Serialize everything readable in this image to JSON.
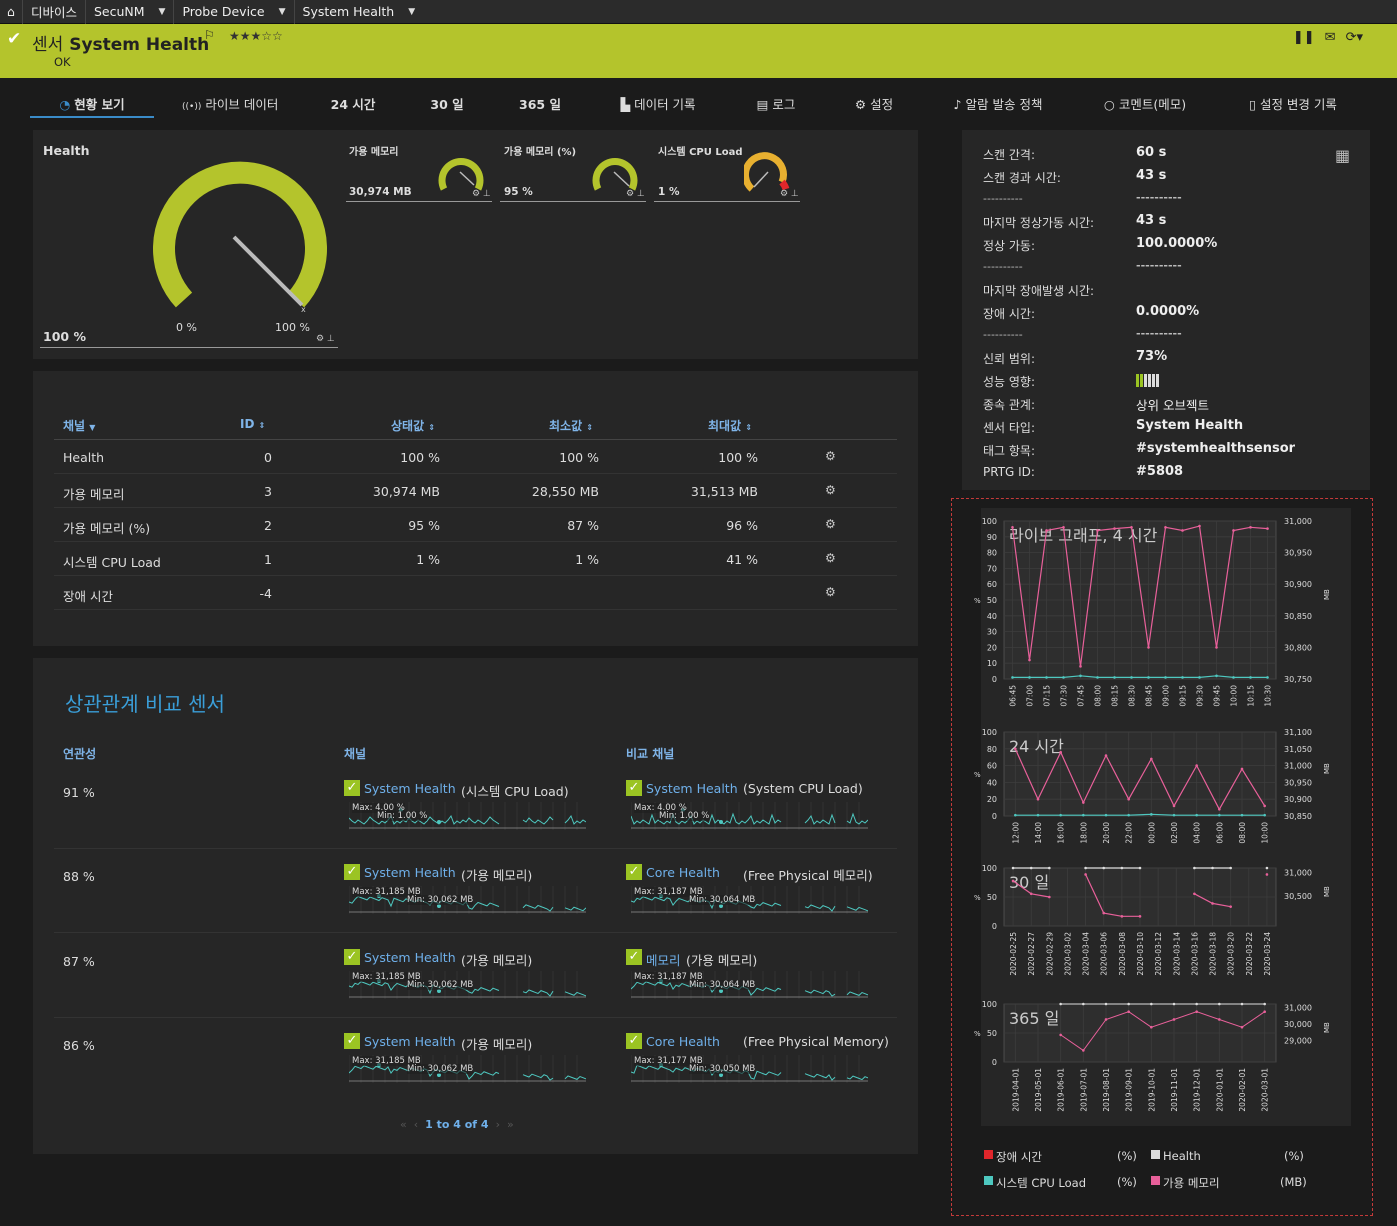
{
  "breadcrumb": [
    "디바이스",
    "SecuNM",
    "Probe Device",
    "System Health"
  ],
  "header": {
    "title_prefix": "센서",
    "title": "System Health",
    "status": "OK",
    "stars": "★★★☆☆",
    "accent": "#b4c42c"
  },
  "tabs": [
    {
      "label": "현황 보기",
      "icon": "gauge-icon"
    },
    {
      "label": "라이브 데이터",
      "icon": "live-icon"
    },
    {
      "label": "24 시간"
    },
    {
      "label": "30 일"
    },
    {
      "label": "365 일"
    },
    {
      "label": "데이터 기록",
      "icon": "chart-icon"
    },
    {
      "label": "로그",
      "icon": "list-icon"
    },
    {
      "label": "설정",
      "icon": "gear-icon"
    },
    {
      "label": "알람 발송 정책",
      "icon": "bell-icon"
    },
    {
      "label": "코멘트(메모)",
      "icon": "comment-icon"
    },
    {
      "label": "설정 변경 기록",
      "icon": "history-icon"
    }
  ],
  "gauges": {
    "main": {
      "title": "Health",
      "value": "100 %",
      "min": "0 %",
      "max": "100 %",
      "level": 1.0
    },
    "small": [
      {
        "title": "가용 메모리",
        "value": "30,974 MB",
        "level": 0.92,
        "color": "#b4c42c"
      },
      {
        "title": "가용 메모리 (%)",
        "value": "95 %",
        "level": 0.95,
        "color": "#b4c42c"
      },
      {
        "title": "시스템 CPU Load",
        "value": "1 %",
        "level": 0.01,
        "color": "#e8b030"
      }
    ]
  },
  "channels": {
    "headers": {
      "name": "채널",
      "id": "ID",
      "last": "상태값",
      "min": "최소값",
      "max": "최대값"
    },
    "rows": [
      {
        "name": "Health",
        "id": "0",
        "last": "100 %",
        "min": "100 %",
        "max": "100 %"
      },
      {
        "name": "가용 메모리",
        "id": "3",
        "last": "30,974 MB",
        "min": "28,550 MB",
        "max": "31,513 MB"
      },
      {
        "name": "가용 메모리 (%)",
        "id": "2",
        "last": "95 %",
        "min": "87 %",
        "max": "96 %"
      },
      {
        "name": "시스템 CPU Load",
        "id": "1",
        "last": "1 %",
        "min": "1 %",
        "max": "41 %"
      },
      {
        "name": "장애 시간",
        "id": "-4",
        "last": "",
        "min": "",
        "max": ""
      }
    ]
  },
  "info": [
    {
      "label": "스캔 간격:",
      "value": "60 s"
    },
    {
      "label": "스캔 경과 시간:",
      "value": "43 s"
    },
    {
      "label": "----------",
      "value": "----------"
    },
    {
      "label": "마지막 정상가동 시간:",
      "value": "43 s"
    },
    {
      "label": "정상 가동:",
      "value": "100.0000%"
    },
    {
      "label": "----------",
      "value": "----------"
    },
    {
      "label": "마지막 장애발생 시간:",
      "value": ""
    },
    {
      "label": "장애 시간:",
      "value": "0.0000%"
    },
    {
      "label": "----------",
      "value": "----------"
    },
    {
      "label": "신뢰 범위:",
      "value": "73%"
    },
    {
      "label": "성능 영향:",
      "value": ""
    },
    {
      "label": "종속 관계:",
      "value": "상위 오브젝트"
    },
    {
      "label": "센서 타입:",
      "value": "System Health"
    },
    {
      "label": "태그 항목:",
      "value": "#systemhealthsensor"
    },
    {
      "label": "PRTG ID:",
      "value": "#5808"
    }
  ],
  "correlation": {
    "title": "상관관계 비교 센서",
    "headers": {
      "corr": "연관성",
      "channel": "채널",
      "compare": "비교 채널"
    },
    "rows": [
      {
        "pct": "91 %",
        "ch_link": "System Health",
        "ch_par": "(시스템 CPU Load)",
        "ch_max": "Max: 4.00 %",
        "ch_min": "Min: 1.00 %",
        "cmp_link": "System Health",
        "cmp_par": "(System CPU Load)",
        "cmp_max": "Max: 4.00 %",
        "cmp_min": "Min: 1.00 %"
      },
      {
        "pct": "88 %",
        "ch_link": "System Health",
        "ch_par": "(가용 메모리)",
        "ch_max": "Max: 31,185 MB",
        "ch_min": "Min: 30,062 MB",
        "cmp_link": "Core Health",
        "cmp_par": "(Free Physical 메모리)",
        "cmp_max": "Max: 31,187 MB",
        "cmp_min": "Min: 30,064 MB"
      },
      {
        "pct": "87 %",
        "ch_link": "System Health",
        "ch_par": "(가용 메모리)",
        "ch_max": "Max: 31,185 MB",
        "ch_min": "Min: 30,062 MB",
        "cmp_link": "메모리",
        "cmp_par": "(가용 메모리)",
        "cmp_max": "Max: 31,187 MB",
        "cmp_min": "Min: 30,064 MB"
      },
      {
        "pct": "86 %",
        "ch_link": "System Health",
        "ch_par": "(가용 메모리)",
        "ch_max": "Max: 31,185 MB",
        "ch_min": "Min: 30,062 MB",
        "cmp_link": "Core Health",
        "cmp_par": "(Free Physical Memory)",
        "cmp_max": "Max: 31,177 MB",
        "cmp_min": "Min: 30,050 MB"
      }
    ],
    "pager": "1 to 4 of 4"
  },
  "chart_data": [
    {
      "type": "line",
      "title": "라이브 그래프, 4 시간",
      "x": [
        "06:45",
        "07:00",
        "07:15",
        "07:30",
        "07:45",
        "08:00",
        "08:15",
        "08:30",
        "08:45",
        "09:00",
        "09:15",
        "09:30",
        "09:45",
        "10:00",
        "10:15",
        "10:30"
      ],
      "ylabel": "%",
      "ylim": [
        0,
        100
      ],
      "yticks": [
        "100",
        "90",
        "80",
        "70",
        "60",
        "50",
        "40",
        "30",
        "20",
        "10",
        "0"
      ],
      "y2label": "MB",
      "y2lim": [
        30750,
        31000
      ],
      "y2ticks": [
        "31,000",
        "30,950",
        "30,900",
        "30,850",
        "30,800",
        "30,750"
      ],
      "series": [
        {
          "name": "가용 메모리",
          "unit": "MB",
          "axis": "right",
          "color": "#e8609a",
          "values": [
            30990,
            30780,
            30985,
            30990,
            30770,
            30985,
            30988,
            30990,
            30800,
            30990,
            30985,
            30992,
            30800,
            30985,
            30990,
            30988
          ]
        },
        {
          "name": "시스템 CPU Load",
          "unit": "%",
          "axis": "left",
          "color": "#4ec8c0",
          "values": [
            1,
            1,
            1,
            1,
            2,
            1,
            1,
            1,
            1,
            1,
            1,
            1,
            2,
            1,
            1,
            1
          ]
        }
      ]
    },
    {
      "type": "line",
      "title": "24 시간",
      "x": [
        "12:00",
        "14:00",
        "16:00",
        "18:00",
        "20:00",
        "22:00",
        "00:00",
        "02:00",
        "04:00",
        "06:00",
        "08:00",
        "10:00"
      ],
      "ylabel": "%",
      "ylim": [
        0,
        100
      ],
      "yticks": [
        "100",
        "80",
        "60",
        "40",
        "20",
        "0"
      ],
      "y2label": "MB",
      "y2lim": [
        30850,
        31100
      ],
      "y2ticks": [
        "31,100",
        "31,050",
        "31,000",
        "30,950",
        "30,900",
        "30,850"
      ],
      "series": [
        {
          "name": "가용 메모리",
          "unit": "MB",
          "axis": "right",
          "color": "#e8609a",
          "values": [
            31050,
            30900,
            31040,
            30890,
            31030,
            30900,
            31020,
            30880,
            31000,
            30870,
            30990,
            30880
          ]
        },
        {
          "name": "시스템 CPU Load",
          "unit": "%",
          "axis": "left",
          "color": "#4ec8c0",
          "values": [
            1,
            1,
            1,
            1,
            1,
            1,
            2,
            1,
            1,
            1,
            1,
            1
          ]
        }
      ]
    },
    {
      "type": "line",
      "title": "30 일",
      "x": [
        "2020-02-25",
        "2020-02-27",
        "2020-02-29",
        "2020-03-02",
        "2020-03-04",
        "2020-03-06",
        "2020-03-08",
        "2020-03-10",
        "2020-03-12",
        "2020-03-14",
        "2020-03-16",
        "2020-03-18",
        "2020-03-20",
        "2020-03-22",
        "2020-03-24"
      ],
      "ylabel": "%",
      "ylim": [
        0,
        100
      ],
      "yticks": [
        "100",
        "50",
        "0"
      ],
      "y2label": "MB",
      "y2ticks": [
        "31,000",
        "30,500"
      ],
      "series": [
        {
          "name": "가용 메모리",
          "unit": "MB",
          "axis": "right",
          "color": "#e8609a",
          "values": [
            30900,
            30700,
            30650,
            null,
            31000,
            30400,
            30350,
            30350,
            null,
            null,
            30700,
            30550,
            30500,
            null,
            31000
          ]
        },
        {
          "name": "Health",
          "unit": "%",
          "axis": "left",
          "color": "#dddddd",
          "values": [
            100,
            100,
            100,
            null,
            100,
            100,
            100,
            100,
            null,
            null,
            100,
            100,
            100,
            null,
            100
          ]
        }
      ]
    },
    {
      "type": "line",
      "title": "365 일",
      "x": [
        "2019-04-01",
        "2019-05-01",
        "2019-06-01",
        "2019-07-01",
        "2019-08-01",
        "2019-09-01",
        "2019-10-01",
        "2019-11-01",
        "2019-12-01",
        "2020-01-01",
        "2020-02-01",
        "2020-03-01"
      ],
      "ylabel": "%",
      "ylim": [
        0,
        100
      ],
      "yticks": [
        "100",
        "50",
        "0"
      ],
      "y2label": "MB",
      "y2ticks": [
        "31,000",
        "30,000",
        "29,000"
      ],
      "series": [
        {
          "name": "가용 메모리",
          "unit": "MB",
          "axis": "right",
          "color": "#e8609a",
          "values": [
            null,
            null,
            30600,
            30400,
            30800,
            30900,
            30700,
            30800,
            30900,
            30800,
            30700,
            30900
          ]
        },
        {
          "name": "Health",
          "unit": "%",
          "axis": "left",
          "color": "#dddddd",
          "values": [
            null,
            null,
            100,
            100,
            100,
            100,
            100,
            100,
            100,
            100,
            100,
            100
          ]
        }
      ]
    }
  ],
  "legend": [
    {
      "name": "장애 시간",
      "unit": "(%)",
      "color": "#e0262b"
    },
    {
      "name": "Health",
      "unit": "(%)",
      "color": "#dddddd"
    },
    {
      "name": "시스템 CPU Load",
      "unit": "(%)",
      "color": "#4ec8c0"
    },
    {
      "name": "가용 메모리",
      "unit": "(MB)",
      "color": "#e8609a"
    }
  ]
}
